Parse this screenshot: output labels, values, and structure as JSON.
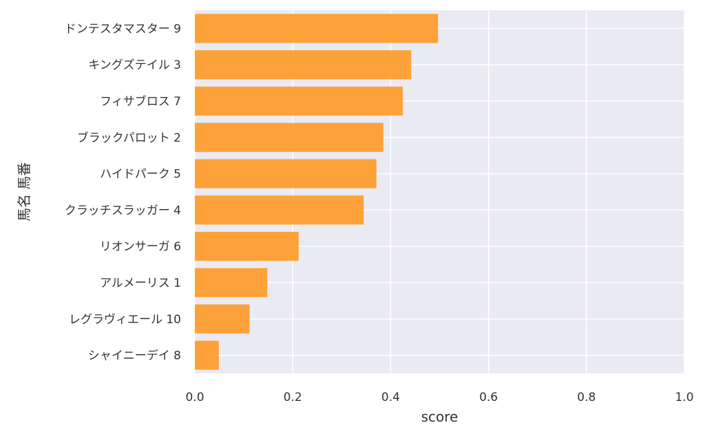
{
  "chart_data": {
    "type": "bar",
    "orientation": "horizontal",
    "title": "",
    "xlabel": "score",
    "ylabel": "馬名 馬番",
    "xlim": [
      0.0,
      1.0
    ],
    "x_ticks": [
      "0.0",
      "0.2",
      "0.4",
      "0.6",
      "0.8",
      "1.0"
    ],
    "grid": true,
    "categories": [
      "ドンテスタマスター 9",
      "キングズテイル 3",
      "フィサブロス 7",
      "ブラックパロット 2",
      "ハイドパーク 5",
      "クラッチスラッガー 4",
      "リオンサーガ 6",
      "アルメーリス 1",
      "レグラヴィエール 10",
      "シャイニーデイ 8"
    ],
    "values": [
      0.497,
      0.442,
      0.425,
      0.385,
      0.371,
      0.345,
      0.212,
      0.148,
      0.112,
      0.049
    ],
    "bar_color": "#ff9a26",
    "background_color": "#eaeaf2",
    "grid_color": "#ffffff"
  }
}
